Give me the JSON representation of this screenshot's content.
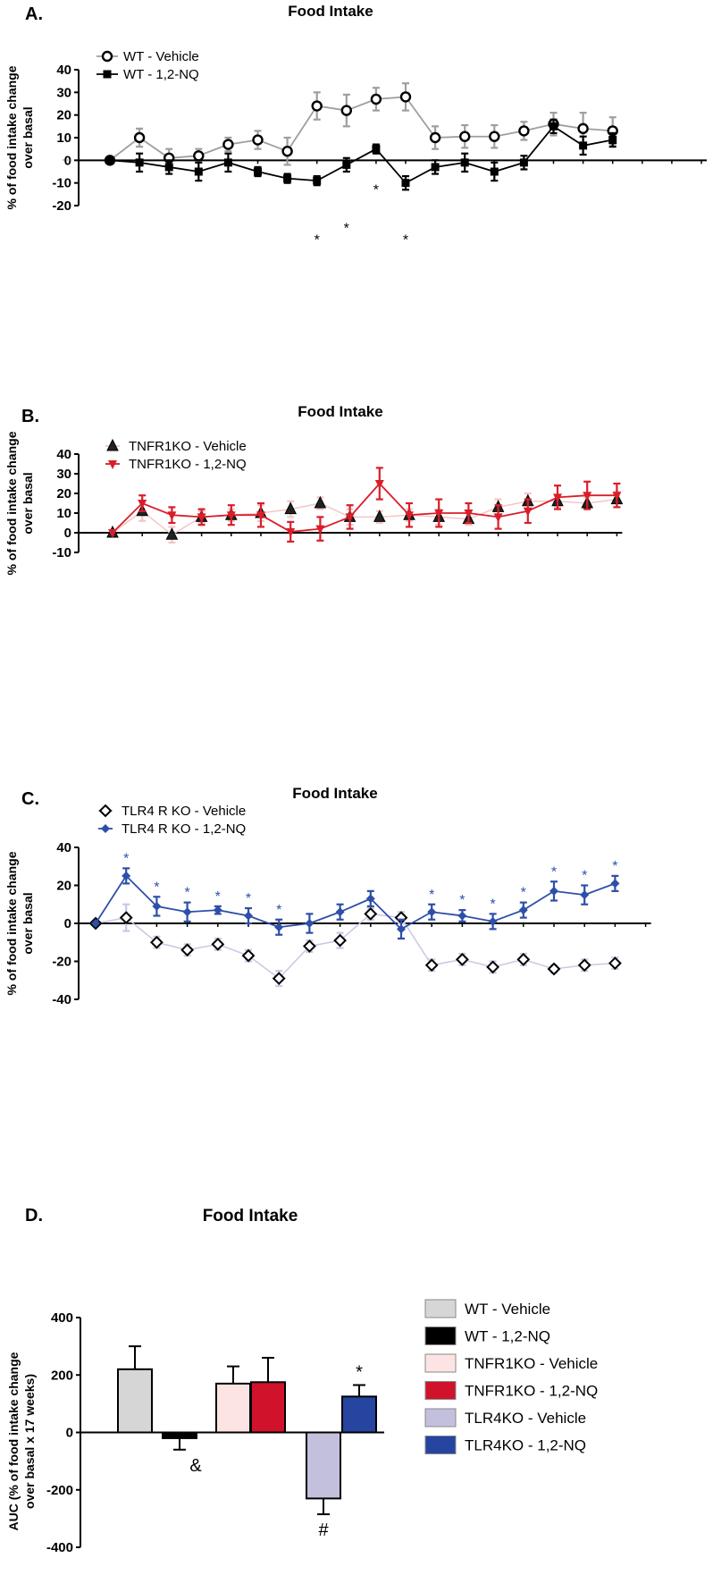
{
  "chart_data": [
    {
      "type": "line",
      "panel": "A.",
      "title": "Food Intake",
      "ylabel_lines": [
        "% of food intake  change",
        "over basal"
      ],
      "ylim": [
        -20,
        40
      ],
      "yticks": [
        40,
        30,
        20,
        10,
        0,
        -10,
        -20
      ],
      "x": [
        1,
        2,
        3,
        4,
        5,
        6,
        7,
        8,
        9,
        10,
        11,
        12,
        13,
        14,
        15,
        16,
        17,
        18,
        19,
        20,
        21
      ],
      "series": [
        {
          "name": "WT - Vehicle",
          "color": "#9e9e9e",
          "marker": "circle-open",
          "values": [
            0,
            10,
            1,
            2,
            7,
            9,
            4,
            24,
            22,
            27,
            28,
            10,
            10.5,
            10.5,
            13,
            16,
            14,
            13
          ],
          "x": [
            1,
            2,
            3,
            4,
            5,
            6,
            7,
            8,
            9,
            10,
            11,
            12,
            13,
            14,
            15,
            16,
            17,
            18
          ],
          "errors": [
            0,
            4,
            4,
            3,
            3,
            4,
            6,
            6,
            7,
            5,
            6,
            5,
            5,
            5,
            4,
            5,
            7,
            6
          ]
        },
        {
          "name": "WT - 1,2-NQ",
          "color": "#000000",
          "marker": "square",
          "values": [
            0,
            -1,
            -3,
            -5,
            -1,
            -5,
            -8,
            -9,
            -2,
            5,
            -10,
            -3,
            -1,
            -5,
            -1,
            15,
            6.5,
            9
          ],
          "x": [
            1,
            2,
            3,
            4,
            5,
            6,
            7,
            8,
            9,
            10,
            11,
            12,
            13,
            14,
            15,
            16,
            17,
            18
          ],
          "errors": [
            0,
            4,
            3,
            4,
            4,
            2,
            2,
            2,
            3,
            2,
            3,
            3,
            4,
            4,
            3,
            3,
            4,
            3
          ]
        }
      ],
      "significance": [
        {
          "x": 8,
          "y": -30,
          "label": "*"
        },
        {
          "x": 9,
          "y": -25,
          "label": "*"
        },
        {
          "x": 10,
          "y": -8,
          "label": "*"
        },
        {
          "x": 11,
          "y": -30,
          "label": "*"
        }
      ]
    },
    {
      "type": "line",
      "panel": "B.",
      "title": "Food Intake",
      "ylabel_lines": [
        "% of food intake  change",
        "over basal"
      ],
      "ylim": [
        -10,
        40
      ],
      "yticks": [
        40,
        30,
        20,
        10,
        0,
        -10
      ],
      "x": [
        1,
        2,
        3,
        4,
        5,
        6,
        7,
        8,
        9,
        10,
        11,
        12,
        13,
        14,
        15,
        16,
        17,
        18
      ],
      "series": [
        {
          "name": "TNFR1KO - Vehicle",
          "color": "#f4c6c6",
          "marker": "triangle-up",
          "values": [
            0,
            11,
            -1,
            8,
            9,
            10,
            12,
            15,
            8,
            8,
            9,
            8,
            7,
            13,
            16,
            16,
            15,
            17
          ],
          "errors": [
            0,
            5,
            4,
            3,
            3,
            4,
            4,
            3,
            4,
            3,
            3,
            4,
            3,
            4,
            4,
            3,
            3,
            4
          ]
        },
        {
          "name": "TNFR1KO - 1,2-NQ",
          "color": "#d91e2a",
          "marker": "triangle-down",
          "values": [
            0,
            15,
            9,
            8,
            9,
            9,
            0.5,
            2,
            8,
            25,
            9,
            10,
            10,
            8,
            11,
            18,
            19,
            19
          ],
          "errors": [
            0,
            4,
            4,
            4,
            5,
            6,
            5,
            6,
            6,
            8,
            6,
            7,
            5,
            6,
            6,
            6,
            7,
            6
          ]
        }
      ],
      "significance": []
    },
    {
      "type": "line",
      "panel": "C.",
      "title": "Food Intake",
      "ylabel_lines": [
        "% of food intake  change",
        "over basal"
      ],
      "ylim": [
        -40,
        40
      ],
      "yticks": [
        40,
        20,
        0,
        -20,
        -40
      ],
      "x": [
        1,
        2,
        3,
        4,
        5,
        6,
        7,
        8,
        9,
        10,
        11,
        12,
        13,
        14,
        15,
        16,
        17,
        18,
        19
      ],
      "series": [
        {
          "name": "TLR4 R KO - Vehicle",
          "color": "#c8c8e6",
          "marker": "diamond-open",
          "values": [
            0,
            3,
            -10,
            -14,
            -11,
            -17,
            -29,
            -12,
            -9,
            5,
            3,
            -22,
            -19,
            -23,
            -19,
            -24,
            -22,
            -21
          ],
          "x": [
            1,
            2,
            3,
            4,
            5,
            6,
            7,
            8,
            9,
            10,
            11,
            12,
            13,
            14,
            15,
            16,
            17,
            18
          ],
          "errors": [
            0,
            7,
            3,
            3,
            3,
            3,
            4,
            3,
            4,
            3,
            3,
            3,
            3,
            3,
            3,
            2,
            3,
            3
          ]
        },
        {
          "name": "TLR4 R KO - 1,2-NQ",
          "color": "#2e4fa8",
          "marker": "diamond",
          "values": [
            0,
            25,
            9,
            6,
            7,
            4,
            -2,
            0,
            6,
            13,
            -3,
            6,
            4,
            1,
            7,
            17,
            15,
            21
          ],
          "x": [
            1,
            2,
            3,
            4,
            5,
            6,
            7,
            8,
            9,
            10,
            11,
            12,
            13,
            14,
            15,
            16,
            17,
            18
          ],
          "errors": [
            0,
            4,
            5,
            5,
            2,
            4,
            4,
            5,
            4,
            4,
            5,
            4,
            3,
            4,
            4,
            5,
            5,
            4
          ]
        }
      ],
      "significance": [
        {
          "x": 2,
          "label": "*"
        },
        {
          "x": 3,
          "label": "*"
        },
        {
          "x": 4,
          "label": "*"
        },
        {
          "x": 5,
          "label": "*"
        },
        {
          "x": 6,
          "label": "*"
        },
        {
          "x": 7,
          "label": "*"
        },
        {
          "x": 12,
          "label": "*"
        },
        {
          "x": 13,
          "label": "*"
        },
        {
          "x": 14,
          "label": "*"
        },
        {
          "x": 15,
          "label": "*"
        },
        {
          "x": 16,
          "label": "*"
        },
        {
          "x": 17,
          "label": "*"
        },
        {
          "x": 18,
          "label": "*"
        }
      ]
    },
    {
      "type": "bar",
      "panel": "D.",
      "title": "Food Intake",
      "ylabel_lines": [
        "AUC (% of food intake  change",
        "over basal x 17 weeks)"
      ],
      "ylim": [
        -400,
        400
      ],
      "yticks": [
        400,
        200,
        0,
        -200,
        -400
      ],
      "categories": [
        "WT - Vehicle",
        "WT - 1,2-NQ",
        "TNFR1KO - Vehicle",
        "TNFR1KO - 1,2-NQ",
        "TLR4KO - Vehicle",
        "TLR4KO - 1,2-NQ"
      ],
      "values": [
        220,
        -20,
        170,
        175,
        -230,
        125
      ],
      "errors": [
        80,
        40,
        60,
        85,
        55,
        40
      ],
      "colors": [
        "#d6d6d6",
        "#000000",
        "#fde4e4",
        "#d0122a",
        "#c3c0de",
        "#2545a0"
      ],
      "annotations": [
        {
          "bar": 1,
          "label": "&",
          "position": "below"
        },
        {
          "bar": 4,
          "label": "#",
          "position": "below"
        },
        {
          "bar": 5,
          "label": "*",
          "position": "above"
        }
      ]
    }
  ]
}
